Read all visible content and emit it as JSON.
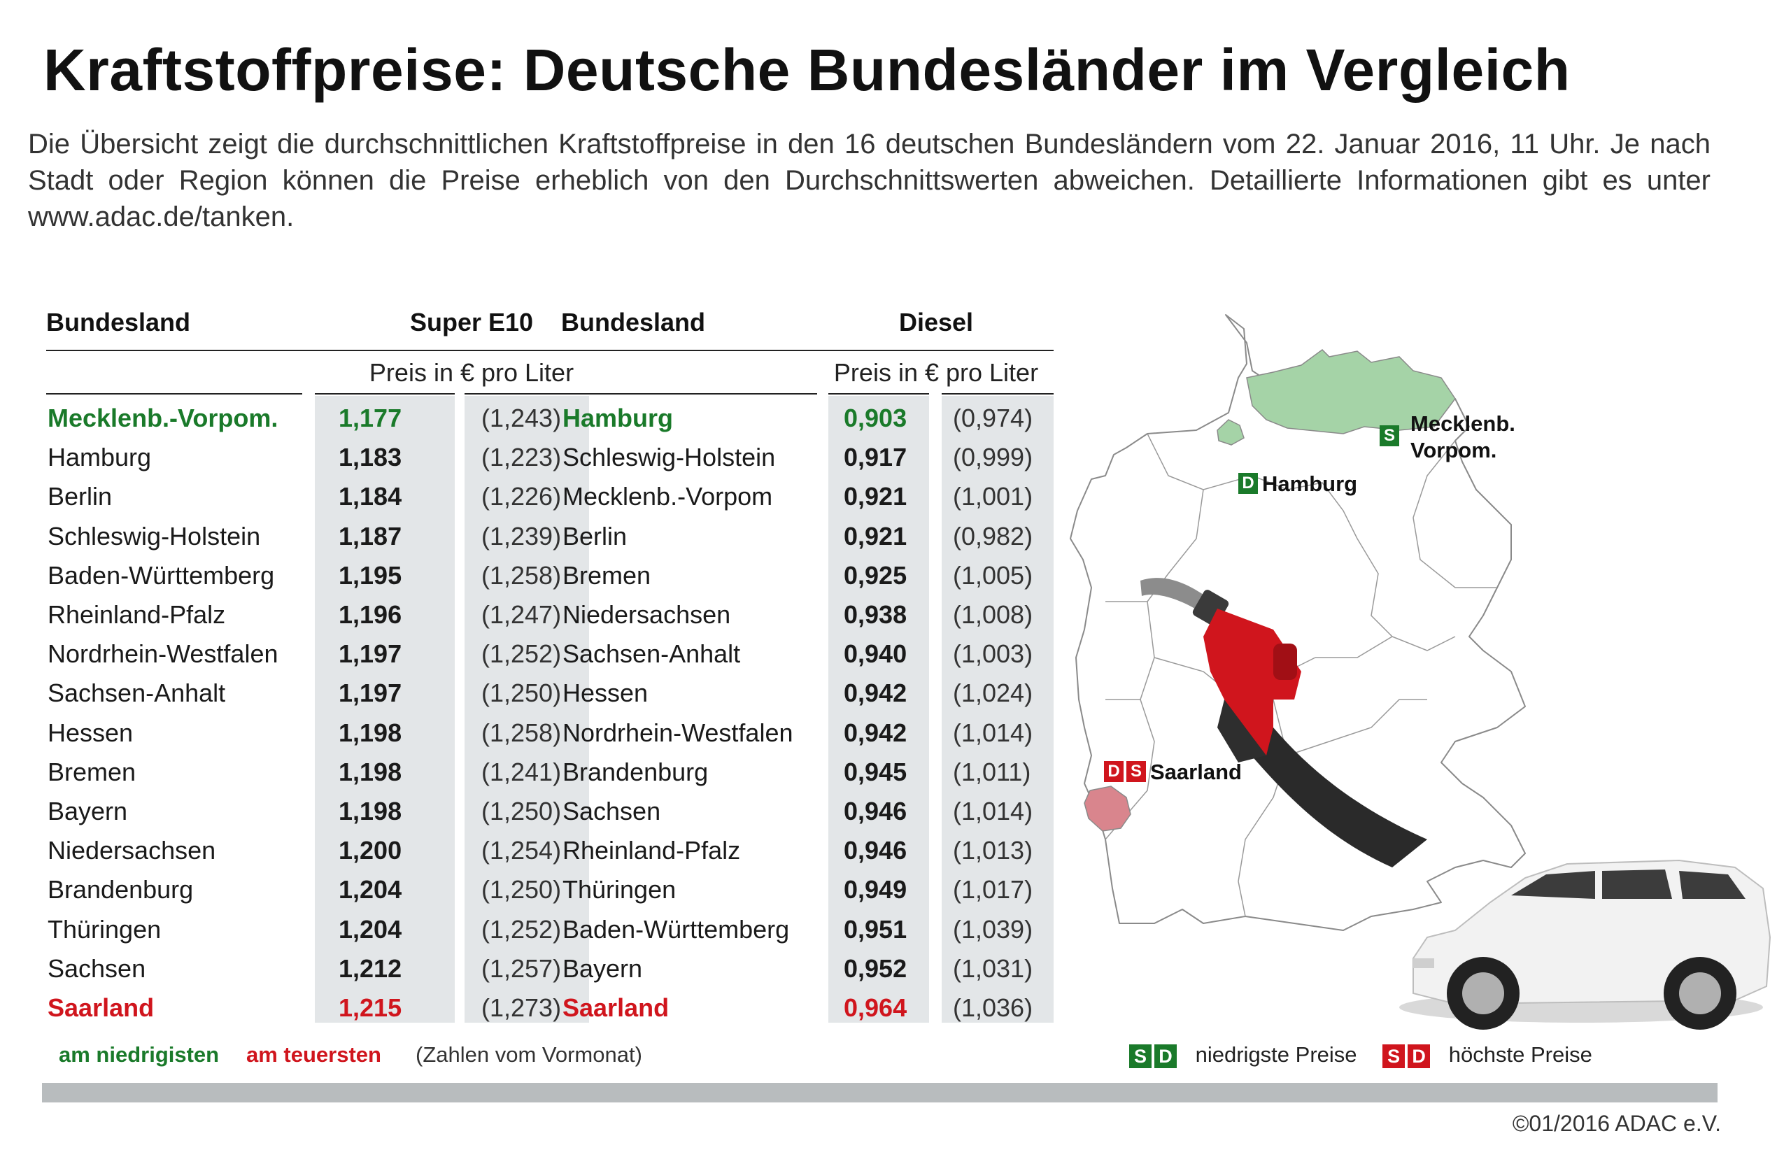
{
  "title": "Kraftstoffpreise: Deutsche Bundesländer im Vergleich",
  "intro": "Die Übersicht zeigt die durchschnittlichen Kraftstoffpreise in den 16 deutschen Bundesländern vom 22. Januar 2016, 11 Uhr. Je nach Stadt oder Region können die Preise erheblich von den Durchschnittswerten abweichen. Detaillierte Informationen gibt es unter www.adac.de/tanken.",
  "e10": {
    "col_state": "Bundesland",
    "col_fuel": "Super E10",
    "col_unit": "Preis in € pro Liter",
    "rows": [
      {
        "name": "Mecklenb.-Vorpom.",
        "price": "1,177",
        "prev": "(1,243)",
        "hl": "low"
      },
      {
        "name": "Hamburg",
        "price": "1,183",
        "prev": "(1,223)",
        "hl": ""
      },
      {
        "name": "Berlin",
        "price": "1,184",
        "prev": "(1,226)",
        "hl": ""
      },
      {
        "name": "Schleswig-Holstein",
        "price": "1,187",
        "prev": "(1,239)",
        "hl": ""
      },
      {
        "name": "Baden-Württemberg",
        "price": "1,195",
        "prev": "(1,258)",
        "hl": ""
      },
      {
        "name": "Rheinland-Pfalz",
        "price": "1,196",
        "prev": "(1,247)",
        "hl": ""
      },
      {
        "name": "Nordrhein-Westfalen",
        "price": "1,197",
        "prev": "(1,252)",
        "hl": ""
      },
      {
        "name": "Sachsen-Anhalt",
        "price": "1,197",
        "prev": "(1,250)",
        "hl": ""
      },
      {
        "name": "Hessen",
        "price": "1,198",
        "prev": "(1,258)",
        "hl": ""
      },
      {
        "name": "Bremen",
        "price": "1,198",
        "prev": "(1,241)",
        "hl": ""
      },
      {
        "name": "Bayern",
        "price": "1,198",
        "prev": "(1,250)",
        "hl": ""
      },
      {
        "name": "Niedersachsen",
        "price": "1,200",
        "prev": "(1,254)",
        "hl": ""
      },
      {
        "name": "Brandenburg",
        "price": "1,204",
        "prev": "(1,250)",
        "hl": ""
      },
      {
        "name": "Thüringen",
        "price": "1,204",
        "prev": "(1,252)",
        "hl": ""
      },
      {
        "name": "Sachsen",
        "price": "1,212",
        "prev": "(1,257)",
        "hl": ""
      },
      {
        "name": "Saarland",
        "price": "1,215",
        "prev": "(1,273)",
        "hl": "high"
      }
    ]
  },
  "diesel": {
    "col_state": "Bundesland",
    "col_fuel": "Diesel",
    "col_unit": "Preis in € pro Liter",
    "rows": [
      {
        "name": "Hamburg",
        "price": "0,903",
        "prev": "(0,974)",
        "hl": "low"
      },
      {
        "name": "Schleswig-Holstein",
        "price": "0,917",
        "prev": "(0,999)",
        "hl": ""
      },
      {
        "name": "Mecklenb.-Vorpom",
        "price": "0,921",
        "prev": "(1,001)",
        "hl": ""
      },
      {
        "name": "Berlin",
        "price": "0,921",
        "prev": "(0,982)",
        "hl": ""
      },
      {
        "name": "Bremen",
        "price": "0,925",
        "prev": "(1,005)",
        "hl": ""
      },
      {
        "name": "Niedersachsen",
        "price": "0,938",
        "prev": "(1,008)",
        "hl": ""
      },
      {
        "name": "Sachsen-Anhalt",
        "price": "0,940",
        "prev": "(1,003)",
        "hl": ""
      },
      {
        "name": "Hessen",
        "price": "0,942",
        "prev": "(1,024)",
        "hl": ""
      },
      {
        "name": "Nordrhein-Westfalen",
        "price": "0,942",
        "prev": "(1,014)",
        "hl": ""
      },
      {
        "name": "Brandenburg",
        "price": "0,945",
        "prev": "(1,011)",
        "hl": ""
      },
      {
        "name": "Sachsen",
        "price": "0,946",
        "prev": "(1,014)",
        "hl": ""
      },
      {
        "name": "Rheinland-Pfalz",
        "price": "0,946",
        "prev": "(1,013)",
        "hl": ""
      },
      {
        "name": "Thüringen",
        "price": "0,949",
        "prev": "(1,017)",
        "hl": ""
      },
      {
        "name": "Baden-Württemberg",
        "price": "0,951",
        "prev": "(1,039)",
        "hl": ""
      },
      {
        "name": "Bayern",
        "price": "0,952",
        "prev": "(1,031)",
        "hl": ""
      },
      {
        "name": "Saarland",
        "price": "0,964",
        "prev": "(1,036)",
        "hl": "high"
      }
    ]
  },
  "legend": {
    "low": "am niedrigisten",
    "high": "am teuersten",
    "note": "(Zahlen vom Vormonat)",
    "badge_s": "S",
    "badge_d": "D",
    "lowest_prices": "niedrigste Preise",
    "highest_prices": "höchste Preise"
  },
  "map": {
    "label_mv_1": "Mecklenb.",
    "label_mv_2": "Vorpom.",
    "label_hamburg": "Hamburg",
    "label_saarland": "Saarland",
    "badge_s": "S",
    "badge_d": "D",
    "colors": {
      "green_region": "#a5d3a7",
      "red_region": "#d9858d",
      "outline": "#8a8a8a"
    }
  },
  "copyright": "©01/2016 ADAC e.V."
}
